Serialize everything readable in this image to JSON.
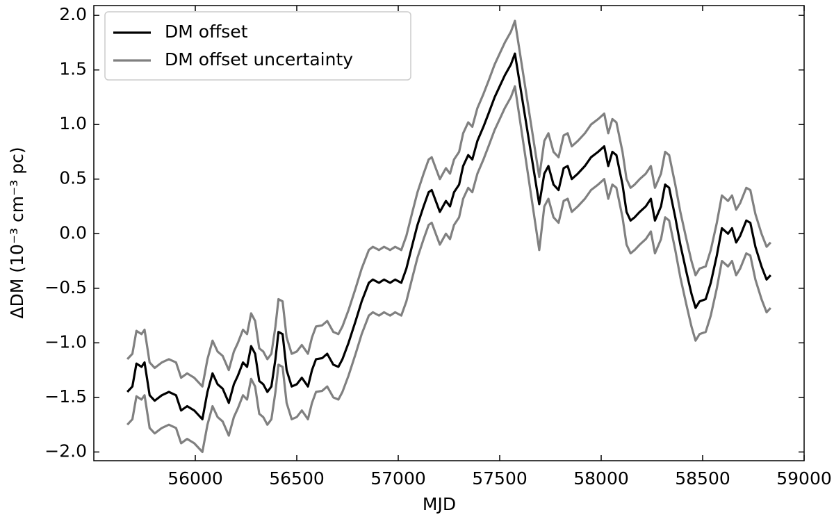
{
  "chart_data": {
    "type": "line",
    "xlabel": "MJD",
    "ylabel": "ΔDM (10⁻³ cm⁻³ pc)",
    "xlim": [
      55500,
      59000
    ],
    "ylim": [
      -2.08,
      2.09
    ],
    "xticks": [
      56000,
      56500,
      57000,
      57500,
      58000,
      58500,
      59000
    ],
    "yticks": [
      {
        "value": -2.0,
        "label": "−2.0"
      },
      {
        "value": -1.5,
        "label": "−1.5"
      },
      {
        "value": -1.0,
        "label": "−1.0"
      },
      {
        "value": -0.5,
        "label": "−0.5"
      },
      {
        "value": 0.0,
        "label": "0.0"
      },
      {
        "value": 0.5,
        "label": "0.5"
      },
      {
        "value": 1.0,
        "label": "1.0"
      },
      {
        "value": 1.5,
        "label": "1.5"
      },
      {
        "value": 2.0,
        "label": "2.0"
      }
    ],
    "legend": "upper left",
    "x": [
      55665,
      55690,
      55710,
      55735,
      55750,
      55775,
      55800,
      55835,
      55870,
      55905,
      55930,
      55960,
      55995,
      56035,
      56060,
      56085,
      56110,
      56135,
      56165,
      56190,
      56210,
      56235,
      56255,
      56275,
      56295,
      56315,
      56335,
      56355,
      56375,
      56395,
      56410,
      56430,
      56450,
      56475,
      56500,
      56525,
      56555,
      56575,
      56595,
      56625,
      56650,
      56680,
      56705,
      56725,
      56755,
      56790,
      56820,
      56855,
      56875,
      56905,
      56930,
      56960,
      56985,
      57015,
      57040,
      57070,
      57095,
      57125,
      57150,
      57165,
      57185,
      57205,
      57235,
      57255,
      57275,
      57300,
      57320,
      57345,
      57365,
      57390,
      57420,
      57445,
      57475,
      57500,
      57525,
      57555,
      57575,
      57695,
      57720,
      57740,
      57765,
      57790,
      57815,
      57835,
      57855,
      57885,
      57920,
      57950,
      57985,
      58015,
      58035,
      58055,
      58075,
      58105,
      58125,
      58145,
      58165,
      58190,
      58220,
      58245,
      58265,
      58295,
      58315,
      58335,
      58365,
      58390,
      58420,
      58445,
      58465,
      58485,
      58515,
      58540,
      58570,
      58595,
      58625,
      58645,
      58665,
      58685,
      58715,
      58735,
      58760,
      58790,
      58815,
      58835
    ],
    "series": [
      {
        "name": "DM offset",
        "color": "#000000",
        "values": [
          -1.45,
          -1.4,
          -1.19,
          -1.22,
          -1.18,
          -1.48,
          -1.53,
          -1.48,
          -1.45,
          -1.48,
          -1.62,
          -1.58,
          -1.62,
          -1.7,
          -1.45,
          -1.28,
          -1.38,
          -1.42,
          -1.55,
          -1.38,
          -1.3,
          -1.18,
          -1.22,
          -1.03,
          -1.1,
          -1.35,
          -1.38,
          -1.45,
          -1.4,
          -1.15,
          -0.9,
          -0.92,
          -1.25,
          -1.4,
          -1.38,
          -1.32,
          -1.4,
          -1.25,
          -1.15,
          -1.14,
          -1.1,
          -1.2,
          -1.22,
          -1.15,
          -1.0,
          -0.8,
          -0.62,
          -0.45,
          -0.42,
          -0.45,
          -0.42,
          -0.45,
          -0.42,
          -0.45,
          -0.32,
          -0.1,
          0.08,
          0.25,
          0.38,
          0.4,
          0.3,
          0.2,
          0.3,
          0.25,
          0.38,
          0.45,
          0.62,
          0.72,
          0.68,
          0.85,
          0.98,
          1.1,
          1.25,
          1.35,
          1.45,
          1.55,
          1.65,
          0.27,
          0.55,
          0.62,
          0.45,
          0.4,
          0.6,
          0.62,
          0.5,
          0.55,
          0.62,
          0.7,
          0.75,
          0.8,
          0.62,
          0.75,
          0.72,
          0.45,
          0.2,
          0.12,
          0.15,
          0.2,
          0.25,
          0.32,
          0.12,
          0.25,
          0.45,
          0.42,
          0.15,
          -0.1,
          -0.35,
          -0.55,
          -0.68,
          -0.62,
          -0.6,
          -0.45,
          -0.2,
          0.05,
          0.0,
          0.05,
          -0.08,
          -0.02,
          0.12,
          0.1,
          -0.12,
          -0.3,
          -0.42,
          -0.38
        ]
      },
      {
        "name": "DM offset uncertainty",
        "color": "#808080",
        "upper": [
          -1.15,
          -1.1,
          -0.89,
          -0.92,
          -0.88,
          -1.18,
          -1.23,
          -1.18,
          -1.15,
          -1.18,
          -1.32,
          -1.28,
          -1.32,
          -1.4,
          -1.15,
          -0.98,
          -1.08,
          -1.12,
          -1.25,
          -1.08,
          -1.0,
          -0.88,
          -0.92,
          -0.73,
          -0.8,
          -1.05,
          -1.08,
          -1.15,
          -1.1,
          -0.85,
          -0.6,
          -0.62,
          -0.95,
          -1.1,
          -1.08,
          -1.02,
          -1.1,
          -0.95,
          -0.85,
          -0.84,
          -0.8,
          -0.9,
          -0.92,
          -0.85,
          -0.7,
          -0.5,
          -0.32,
          -0.15,
          -0.12,
          -0.15,
          -0.12,
          -0.15,
          -0.12,
          -0.15,
          -0.02,
          0.2,
          0.38,
          0.55,
          0.68,
          0.7,
          0.6,
          0.5,
          0.6,
          0.55,
          0.68,
          0.75,
          0.92,
          1.02,
          0.98,
          1.15,
          1.28,
          1.4,
          1.55,
          1.65,
          1.75,
          1.85,
          1.95,
          0.52,
          0.85,
          0.92,
          0.75,
          0.7,
          0.9,
          0.92,
          0.8,
          0.85,
          0.92,
          1.0,
          1.05,
          1.1,
          0.92,
          1.05,
          1.02,
          0.75,
          0.5,
          0.42,
          0.45,
          0.5,
          0.55,
          0.62,
          0.42,
          0.55,
          0.75,
          0.72,
          0.45,
          0.2,
          -0.05,
          -0.25,
          -0.38,
          -0.32,
          -0.3,
          -0.15,
          0.1,
          0.35,
          0.3,
          0.35,
          0.22,
          0.28,
          0.42,
          0.4,
          0.18,
          0.0,
          -0.12,
          -0.08
        ],
        "lower": [
          -1.75,
          -1.7,
          -1.49,
          -1.52,
          -1.48,
          -1.78,
          -1.83,
          -1.78,
          -1.75,
          -1.78,
          -1.92,
          -1.88,
          -1.92,
          -2.0,
          -1.75,
          -1.58,
          -1.68,
          -1.72,
          -1.85,
          -1.68,
          -1.6,
          -1.48,
          -1.52,
          -1.33,
          -1.4,
          -1.65,
          -1.68,
          -1.75,
          -1.7,
          -1.45,
          -1.2,
          -1.22,
          -1.55,
          -1.7,
          -1.68,
          -1.62,
          -1.7,
          -1.55,
          -1.45,
          -1.44,
          -1.4,
          -1.5,
          -1.52,
          -1.45,
          -1.3,
          -1.1,
          -0.92,
          -0.75,
          -0.72,
          -0.75,
          -0.72,
          -0.75,
          -0.72,
          -0.75,
          -0.62,
          -0.4,
          -0.22,
          -0.05,
          0.08,
          0.1,
          0.0,
          -0.1,
          0.0,
          -0.05,
          0.08,
          0.15,
          0.32,
          0.42,
          0.38,
          0.55,
          0.68,
          0.8,
          0.95,
          1.05,
          1.15,
          1.25,
          1.35,
          -0.15,
          0.25,
          0.32,
          0.15,
          0.1,
          0.3,
          0.32,
          0.2,
          0.25,
          0.32,
          0.4,
          0.45,
          0.5,
          0.32,
          0.45,
          0.42,
          0.15,
          -0.1,
          -0.18,
          -0.15,
          -0.1,
          -0.05,
          0.02,
          -0.18,
          -0.05,
          0.15,
          0.12,
          -0.15,
          -0.4,
          -0.65,
          -0.85,
          -0.98,
          -0.92,
          -0.9,
          -0.75,
          -0.5,
          -0.25,
          -0.3,
          -0.25,
          -0.38,
          -0.32,
          -0.18,
          -0.2,
          -0.42,
          -0.6,
          -0.72,
          -0.68
        ]
      }
    ]
  }
}
